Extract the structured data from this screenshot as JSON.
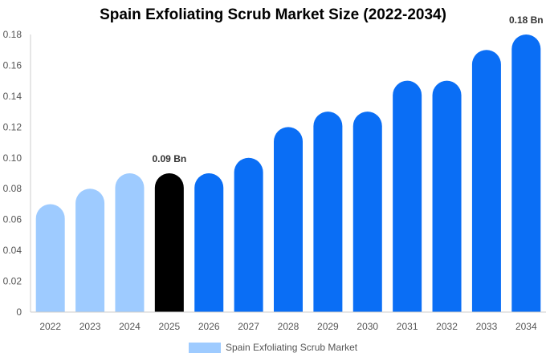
{
  "chart_data": {
    "type": "bar",
    "title": "Spain Exfoliating Scrub Market Size (2022-2034)",
    "categories": [
      "2022",
      "2023",
      "2024",
      "2025",
      "2026",
      "2027",
      "2028",
      "2029",
      "2030",
      "2031",
      "2032",
      "2033",
      "2034"
    ],
    "series": [
      {
        "name": "Spain Exfoliating Scrub Market",
        "values": [
          0.07,
          0.08,
          0.09,
          0.09,
          0.09,
          0.1,
          0.12,
          0.13,
          0.13,
          0.15,
          0.15,
          0.17,
          0.18
        ]
      }
    ],
    "ylim": [
      0,
      0.18
    ],
    "yticks": [
      "0",
      "0.02",
      "0.04",
      "0.06",
      "0.08",
      "0.10",
      "0.12",
      "0.14",
      "0.16",
      "0.18"
    ],
    "data_labels": [
      {
        "index": 3,
        "text": "0.09 Bn"
      },
      {
        "index": 12,
        "text": "0.18 Bn"
      }
    ],
    "colors": {
      "historical": "#9ecbff",
      "current": "#000000",
      "forecast": "#0a6ef5"
    },
    "current_index": 3,
    "grid": false,
    "legend": "bottom"
  }
}
